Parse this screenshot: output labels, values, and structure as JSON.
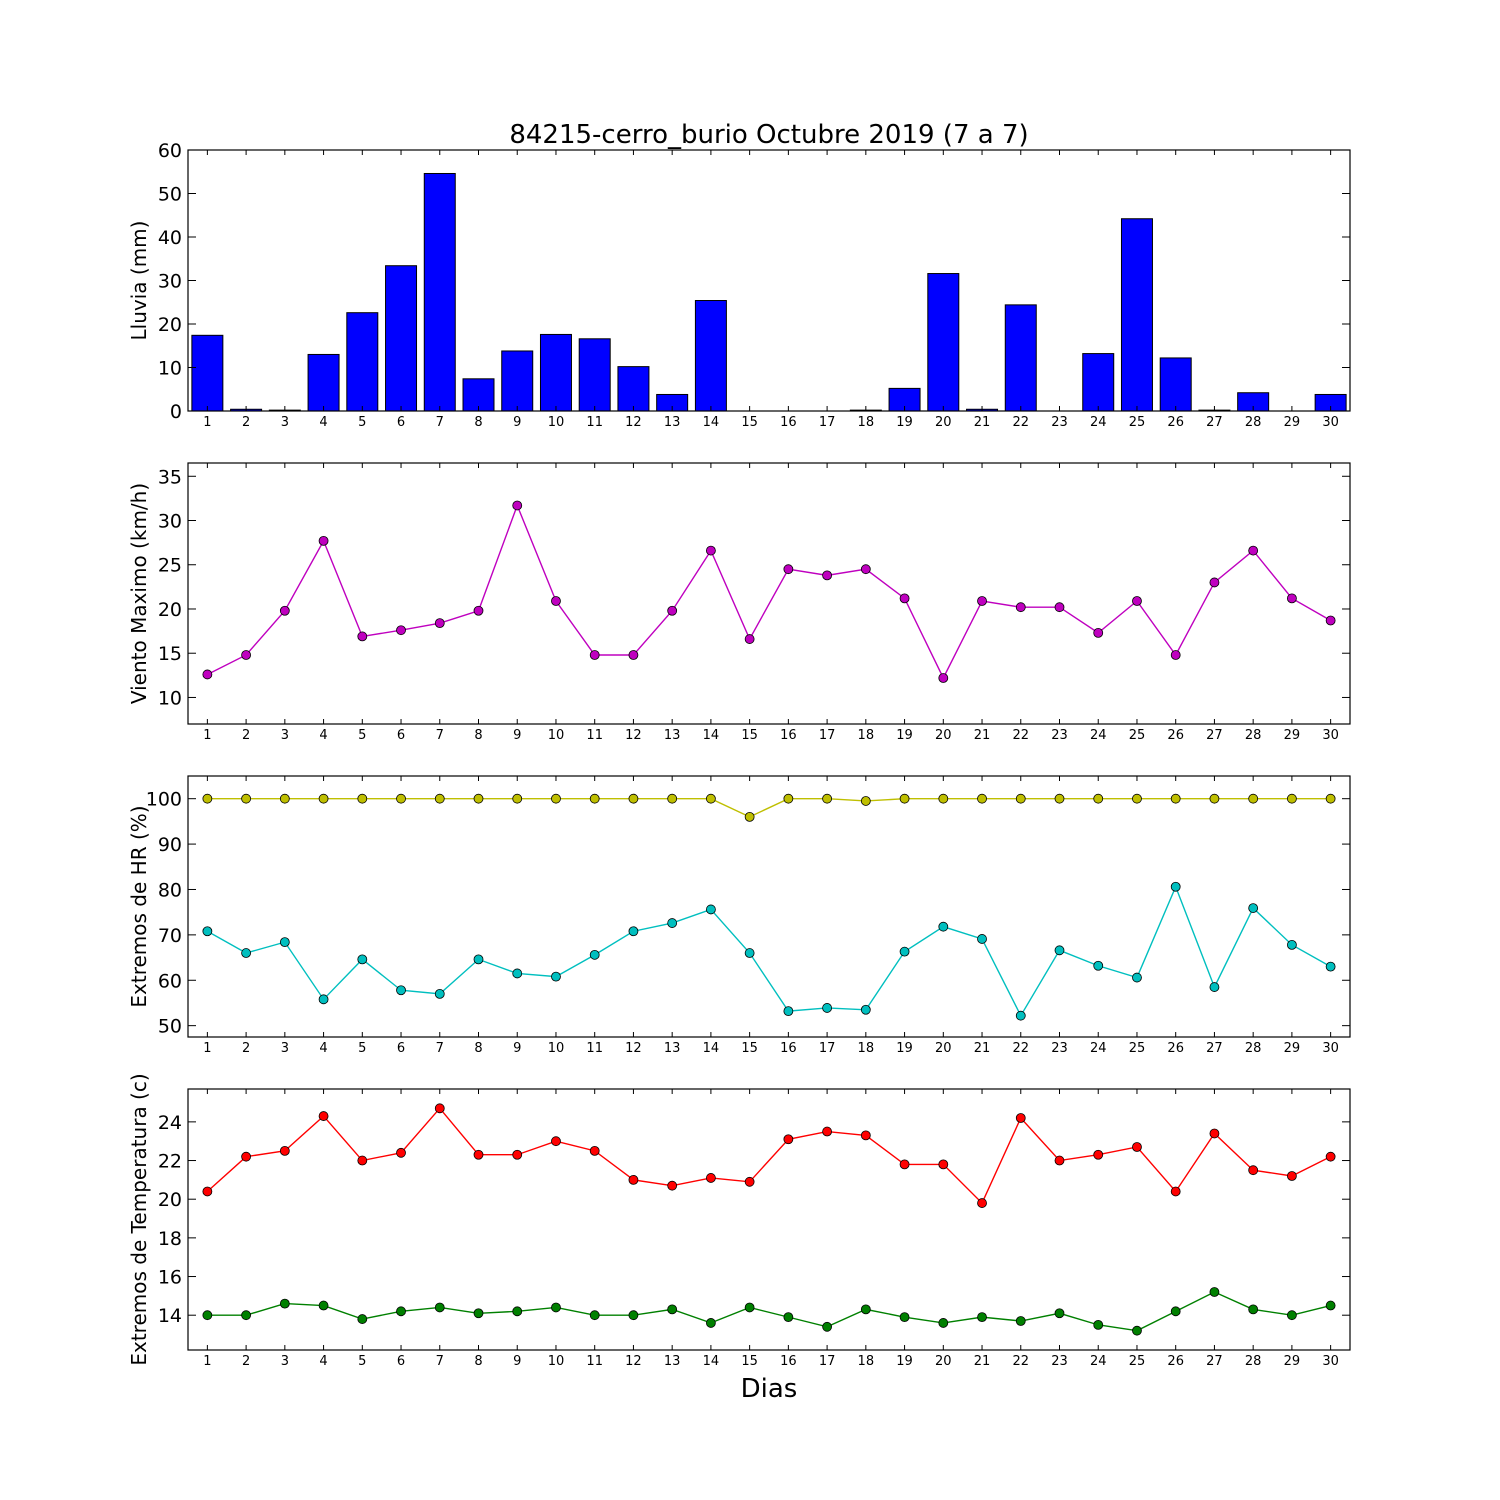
{
  "title": "84215-cerro_burio Octubre 2019  (7 a 7)",
  "xlabel": "Dias",
  "days": [
    "1",
    "2",
    "3",
    "4",
    "5",
    "6",
    "7",
    "8",
    "9",
    "10",
    "11",
    "12",
    "13",
    "14",
    "15",
    "16",
    "17",
    "18",
    "19",
    "20",
    "21",
    "22",
    "23",
    "24",
    "25",
    "26",
    "27",
    "28",
    "29",
    "30"
  ],
  "chart_data": [
    {
      "type": "bar",
      "ylabel": "Lluvia (mm)",
      "ylim": [
        0,
        60
      ],
      "yticks": [
        0,
        10,
        20,
        30,
        40,
        50,
        60
      ],
      "categories": [
        "1",
        "2",
        "3",
        "4",
        "5",
        "6",
        "7",
        "8",
        "9",
        "10",
        "11",
        "12",
        "13",
        "14",
        "15",
        "16",
        "17",
        "18",
        "19",
        "20",
        "21",
        "22",
        "23",
        "24",
        "25",
        "26",
        "27",
        "28",
        "29",
        "30"
      ],
      "series": [
        {
          "color": "#0000ff",
          "values": [
            17.4,
            0.4,
            0.2,
            13.0,
            22.6,
            33.4,
            54.6,
            7.4,
            13.8,
            17.6,
            16.6,
            10.2,
            3.8,
            25.4,
            0,
            0,
            0,
            0.2,
            5.2,
            31.6,
            0.4,
            24.4,
            0,
            13.2,
            44.2,
            12.2,
            0.2,
            4.2,
            0,
            3.8
          ]
        }
      ]
    },
    {
      "type": "line",
      "ylabel": "Viento Maximo (km/h)",
      "ylim": [
        7,
        36.5
      ],
      "yticks": [
        10,
        15,
        20,
        25,
        30,
        35
      ],
      "categories": [
        "1",
        "2",
        "3",
        "4",
        "5",
        "6",
        "7",
        "8",
        "9",
        "10",
        "11",
        "12",
        "13",
        "14",
        "15",
        "16",
        "17",
        "18",
        "19",
        "20",
        "21",
        "22",
        "23",
        "24",
        "25",
        "26",
        "27",
        "28",
        "29",
        "30"
      ],
      "series": [
        {
          "color": "#bf00bf",
          "values": [
            12.6,
            14.8,
            19.8,
            27.7,
            16.9,
            17.6,
            18.4,
            19.8,
            31.7,
            20.9,
            14.8,
            14.8,
            19.8,
            26.6,
            16.6,
            24.5,
            23.8,
            24.5,
            21.2,
            12.2,
            20.9,
            20.2,
            20.2,
            17.3,
            20.9,
            14.8,
            23.0,
            26.6,
            21.2,
            18.7
          ]
        }
      ]
    },
    {
      "type": "line",
      "ylabel": "Extremos de HR (%)",
      "ylim": [
        47.5,
        105
      ],
      "yticks": [
        50,
        60,
        70,
        80,
        90,
        100
      ],
      "categories": [
        "1",
        "2",
        "3",
        "4",
        "5",
        "6",
        "7",
        "8",
        "9",
        "10",
        "11",
        "12",
        "13",
        "14",
        "15",
        "16",
        "17",
        "18",
        "19",
        "20",
        "21",
        "22",
        "23",
        "24",
        "25",
        "26",
        "27",
        "28",
        "29",
        "30"
      ],
      "series": [
        {
          "color": "#bfbf00",
          "values": [
            100,
            100,
            100,
            100,
            100,
            100,
            100,
            100,
            100,
            100,
            100,
            100,
            100,
            100,
            96,
            100,
            100,
            99.5,
            100,
            100,
            100,
            100,
            100,
            100,
            100,
            100,
            100,
            100,
            100,
            100
          ]
        },
        {
          "color": "#00bfbf",
          "values": [
            70.8,
            66.0,
            68.4,
            55.8,
            64.6,
            57.8,
            57.0,
            64.6,
            61.5,
            60.8,
            65.6,
            70.8,
            72.6,
            75.6,
            66.0,
            53.2,
            53.9,
            53.5,
            66.3,
            71.8,
            69.1,
            52.2,
            66.6,
            63.2,
            60.6,
            80.6,
            58.5,
            75.9,
            67.8,
            63.0
          ]
        }
      ]
    },
    {
      "type": "line",
      "ylabel": "Extremos de Temperatura (c)",
      "ylim": [
        12.2,
        25.7
      ],
      "yticks": [
        14,
        16,
        18,
        20,
        22,
        24
      ],
      "categories": [
        "1",
        "2",
        "3",
        "4",
        "5",
        "6",
        "7",
        "8",
        "9",
        "10",
        "11",
        "12",
        "13",
        "14",
        "15",
        "16",
        "17",
        "18",
        "19",
        "20",
        "21",
        "22",
        "23",
        "24",
        "25",
        "26",
        "27",
        "28",
        "29",
        "30"
      ],
      "series": [
        {
          "color": "#ff0000",
          "values": [
            20.4,
            22.2,
            22.5,
            24.3,
            22.0,
            22.4,
            24.7,
            22.3,
            22.3,
            23.0,
            22.5,
            21.0,
            20.7,
            21.1,
            20.9,
            23.1,
            23.5,
            23.3,
            21.8,
            21.8,
            19.8,
            24.2,
            22.0,
            22.3,
            22.7,
            20.4,
            23.4,
            21.5,
            21.2,
            22.2
          ]
        },
        {
          "color": "#008000",
          "values": [
            14.0,
            14.0,
            14.6,
            14.5,
            13.8,
            14.2,
            14.4,
            14.1,
            14.2,
            14.4,
            14.0,
            14.0,
            14.3,
            13.6,
            14.4,
            13.9,
            13.4,
            14.3,
            13.9,
            13.6,
            13.9,
            13.7,
            14.1,
            13.5,
            13.2,
            14.2,
            15.2,
            14.3,
            14.0,
            14.5
          ]
        }
      ]
    }
  ]
}
